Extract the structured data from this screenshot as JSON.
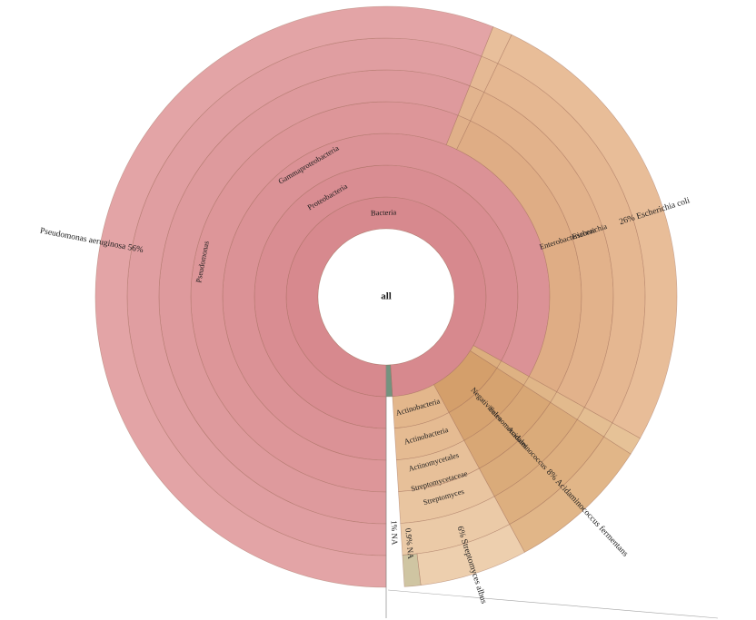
{
  "page": {
    "background": "#ffffff"
  },
  "chart_data": {
    "type": "sunburst",
    "title": "",
    "center_label": "all",
    "unit": "%",
    "direction": "clockwise",
    "start_angle_deg": 180,
    "ring_radii": [
      75,
      110,
      145,
      180,
      215,
      250,
      285,
      320
    ],
    "stroke_color": "#9a6450",
    "line_color": "#8c8c8c",
    "legend_position": "none",
    "grid": false,
    "root": {
      "label": "all",
      "pct": 100,
      "children": [
        {
          "label": "Bacteria",
          "pct": 99,
          "color": "#d7898e",
          "labelMode": "tangent",
          "labelR": 92,
          "children": [
            {
              "label": "Proteobacteria",
              "pct": 83.1,
              "color": "#d98d92",
              "labelMode": "tangent",
              "labelR": 127,
              "children": [
                {
                  "label": "Gammaproteobacteria",
                  "pct": 83.1,
                  "color": "#db9296",
                  "labelMode": "tangent",
                  "labelR": 168,
                  "children": [
                    {
                      "label": "",
                      "pct": 56,
                      "color": "#dd9699",
                      "labelMode": "none",
                      "children": [
                        {
                          "label": "",
                          "pct": 56,
                          "color": "#de9a9d",
                          "labelMode": "none",
                          "children": [
                            {
                              "label": "Pseudomonas",
                              "pct": 56,
                              "color": "#e09ea1",
                              "labelMode": "tangent",
                              "labelR": 205,
                              "children": [
                                {
                                  "label": "Pseudomonas aeruginosa",
                                  "labelText": "Pseudomonas aeruginosa  56%",
                                  "pct": 56,
                                  "color": "#e3a4a6",
                                  "labelMode": "radial",
                                  "labelR": 330,
                                  "fontSize": 9.5
                                }
                              ]
                            }
                          ]
                        }
                      ]
                    },
                    {
                      "label": "",
                      "pct": 1.1,
                      "color": "#e0b089",
                      "labelMode": "none",
                      "children": [
                        {
                          "label": "",
                          "pct": 1.1,
                          "color": "#e2b48e",
                          "labelMode": "none",
                          "children": [
                            {
                              "label": "",
                              "pct": 1.1,
                              "color": "#e5b994",
                              "labelMode": "none",
                              "children": [
                                {
                                  "label": "",
                                  "pct": 1.1,
                                  "color": "#e8bf9b",
                                  "labelMode": "none"
                                }
                              ]
                            }
                          ]
                        }
                      ]
                    },
                    {
                      "label": "",
                      "pct": 26,
                      "color": "#dfad85",
                      "labelMode": "none",
                      "children": [
                        {
                          "label": "Enterobacteriaceae",
                          "pct": 26,
                          "color": "#e2b28b",
                          "labelMode": "radial",
                          "labelR": 210,
                          "children": [
                            {
                              "label": "Escherichia",
                              "pct": 26,
                              "color": "#e5b791",
                              "labelMode": "radial",
                              "labelR": 235,
                              "children": [
                                {
                                  "label": "Escherichia coli",
                                  "labelText": "26%  Escherichia coli",
                                  "pct": 26,
                                  "color": "#e8bd98",
                                  "labelMode": "radial",
                                  "labelR": 310,
                                  "fontSize": 9.5
                                }
                              ]
                            }
                          ]
                        }
                      ]
                    }
                  ]
                }
              ]
            },
            {
              "label": "",
              "pct": 1,
              "color": "#dcae7e",
              "labelMode": "none",
              "children": [
                {
                  "label": "",
                  "pct": 1,
                  "color": "#deb283",
                  "labelMode": "none",
                  "children": [
                    {
                      "label": "",
                      "pct": 1,
                      "color": "#e0b688",
                      "labelMode": "none",
                      "children": [
                        {
                          "label": "",
                          "pct": 1,
                          "color": "#e2ba8d",
                          "labelMode": "none",
                          "children": [
                            {
                              "label": "",
                              "pct": 1,
                              "color": "#e4be92",
                              "labelMode": "none",
                              "children": [
                                {
                                  "label": "",
                                  "pct": 1,
                                  "color": "#e6c297",
                                  "labelMode": "none"
                                }
                              ]
                            }
                          ]
                        }
                      ]
                    }
                  ]
                }
              ]
            },
            {
              "label": "",
              "pct": 8,
              "color": "#d49f6b",
              "labelMode": "none",
              "children": [
                {
                  "label": "Negativicutes",
                  "pct": 8,
                  "color": "#d6a370",
                  "labelMode": "radial",
                  "labelR": 162,
                  "children": [
                    {
                      "label": "Selenomonadales",
                      "pct": 8,
                      "color": "#d8a775",
                      "labelMode": "radial",
                      "labelR": 197,
                      "children": [
                        {
                          "label": "",
                          "pct": 8,
                          "color": "#daab7a",
                          "labelMode": "none",
                          "children": [
                            {
                              "label": "Acidaminococcus",
                              "pct": 8,
                              "color": "#ddaf7f",
                              "labelMode": "radial",
                              "labelR": 228,
                              "children": [
                                {
                                  "label": "Acidaminococcus fermentans",
                                  "labelText": "8%  Acidaminococcus fermentans",
                                  "pct": 8,
                                  "color": "#e1b688",
                                  "labelMode": "radial",
                                  "labelR": 325,
                                  "fontSize": 9.5
                                }
                              ]
                            }
                          ]
                        }
                      ]
                    }
                  ]
                }
              ]
            },
            {
              "label": "Actinobacteria",
              "pct": 6.9,
              "color": "#e3b78c",
              "labelMode": "tangent",
              "labelR": 127,
              "children": [
                {
                  "label": "Actinobacteria",
                  "pct": 6.9,
                  "color": "#e5bb92",
                  "labelMode": "tangent",
                  "labelR": 160,
                  "children": [
                    {
                      "label": "Actinomycetales",
                      "pct": 6.9,
                      "color": "#e7c099",
                      "labelMode": "tangent",
                      "labelR": 190,
                      "children": [
                        {
                          "label": "Streptomycetaceae",
                          "pct": 6.9,
                          "color": "#e9c5a0",
                          "labelMode": "tangent",
                          "labelR": 212,
                          "children": [
                            {
                              "label": "Streptomyces",
                              "pct": 6.9,
                              "color": "#ebcaa7",
                              "labelMode": "tangent",
                              "labelR": 230,
                              "children": [
                                {
                                  "label": "Streptomyces albus",
                                  "labelText": "6%  Streptomyces albus",
                                  "pct": 6,
                                  "color": "#edcfae",
                                  "labelMode": "radial",
                                  "labelR": 310,
                                  "fontSize": 9.5
                                },
                                {
                                  "label": "NA",
                                  "labelText": "0.9%  NA",
                                  "pct": 0.9,
                                  "color": "#cfc5a2",
                                  "labelMode": "radial",
                                  "labelR": 273,
                                  "fontSize": 9
                                }
                              ]
                            }
                          ]
                        }
                      ]
                    }
                  ]
                }
              ]
            }
          ]
        },
        {
          "label": "NA",
          "labelText": "1%  NA",
          "pct": 1,
          "color": "#74937f",
          "labelMode": "radial",
          "labelR": 260,
          "fontSize": 9
        }
      ]
    }
  }
}
